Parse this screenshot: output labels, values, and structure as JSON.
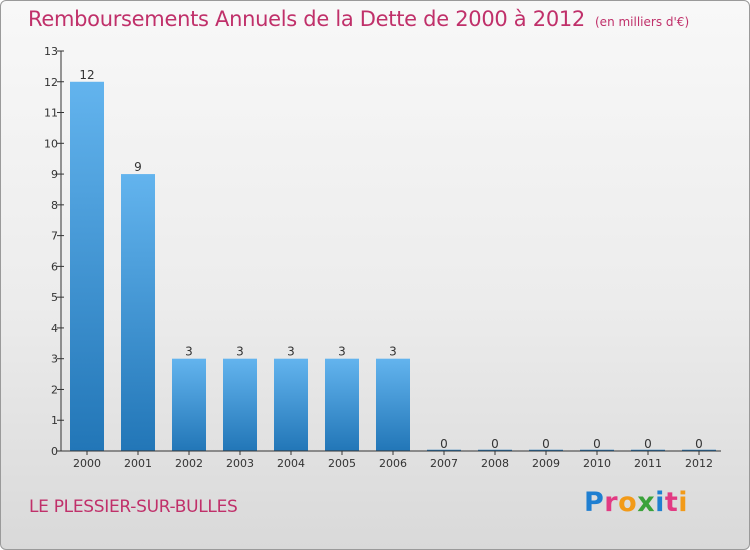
{
  "header": {
    "title": "Remboursements Annuels de la Dette de 2000 à 2012",
    "unit": "(en milliers d'€)"
  },
  "footer": {
    "commune": "LE PLESSIER-SUR-BULLES",
    "logo": "Proxiti"
  },
  "colors": {
    "title": "#c0306a",
    "bar_top": "#63b4ee",
    "bar_bottom": "#2276b7"
  },
  "chart_data": {
    "type": "bar",
    "categories": [
      "2000",
      "2001",
      "2002",
      "2003",
      "2004",
      "2005",
      "2006",
      "2007",
      "2008",
      "2009",
      "2010",
      "2011",
      "2012"
    ],
    "values": [
      12,
      9,
      3,
      3,
      3,
      3,
      3,
      0,
      0,
      0,
      0,
      0,
      0
    ],
    "data_labels": [
      "12",
      "9",
      "3",
      "3",
      "3",
      "3",
      "3",
      "0",
      "0",
      "0",
      "0",
      "0",
      "0"
    ],
    "yticks": [
      0,
      1,
      2,
      3,
      4,
      5,
      6,
      7,
      8,
      9,
      10,
      11,
      12,
      13
    ],
    "ylim": [
      0,
      13
    ],
    "title": "Remboursements Annuels de la Dette de 2000 à 2012",
    "ylabel": "(en milliers d'€)",
    "xlabel": "",
    "grid": false
  }
}
